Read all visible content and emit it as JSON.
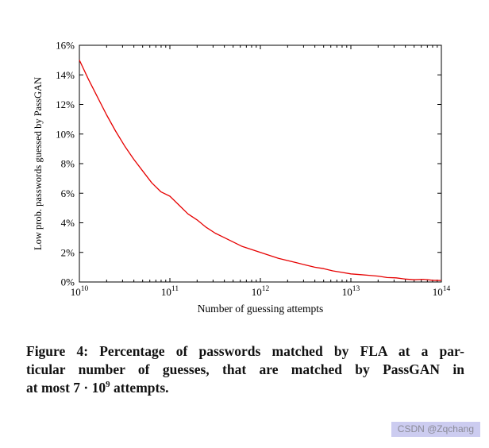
{
  "caption": {
    "line1": "Figure 4: Percentage of passwords matched by FLA at a par-",
    "line2": "ticular number of guesses, that are matched by PassGAN in",
    "line3_pre": "at most 7 · 10",
    "line3_sup": "9",
    "line3_post": " attempts."
  },
  "watermark": "CSDN @Zqchang",
  "chart_data": {
    "type": "line",
    "title": "",
    "xlabel": "Number of guessing attempts",
    "ylabel": "Low prob. passwords guessed by PassGAN",
    "x_scale": "log",
    "x_log_range": [
      10,
      14
    ],
    "x_tick_exponents": [
      10,
      11,
      12,
      13,
      14
    ],
    "ylim": [
      0,
      16
    ],
    "y_ticks": [
      0,
      2,
      4,
      6,
      8,
      10,
      12,
      14,
      16
    ],
    "y_tick_suffix": "%",
    "grid": false,
    "legend": "none",
    "line_color": "#e60000",
    "series": [
      {
        "x_log10": [
          10.0,
          10.1,
          10.2,
          10.3,
          10.4,
          10.5,
          10.6,
          10.7,
          10.8,
          10.9,
          11.0,
          11.1,
          11.2,
          11.3,
          11.4,
          11.5,
          11.6,
          11.7,
          11.8,
          11.9,
          12.0,
          12.1,
          12.2,
          12.3,
          12.4,
          12.5,
          12.6,
          12.7,
          12.8,
          12.9,
          13.0,
          13.1,
          13.2,
          13.3,
          13.4,
          13.5,
          13.6,
          13.7,
          13.8,
          13.9,
          14.0
        ],
        "y": [
          15.0,
          13.7,
          12.5,
          11.3,
          10.2,
          9.2,
          8.3,
          7.5,
          6.7,
          6.1,
          5.8,
          5.2,
          4.6,
          4.2,
          3.7,
          3.3,
          3.0,
          2.7,
          2.4,
          2.2,
          2.0,
          1.8,
          1.6,
          1.45,
          1.3,
          1.15,
          1.0,
          0.9,
          0.75,
          0.65,
          0.55,
          0.5,
          0.45,
          0.4,
          0.3,
          0.28,
          0.2,
          0.15,
          0.18,
          0.12,
          0.1
        ]
      }
    ]
  }
}
